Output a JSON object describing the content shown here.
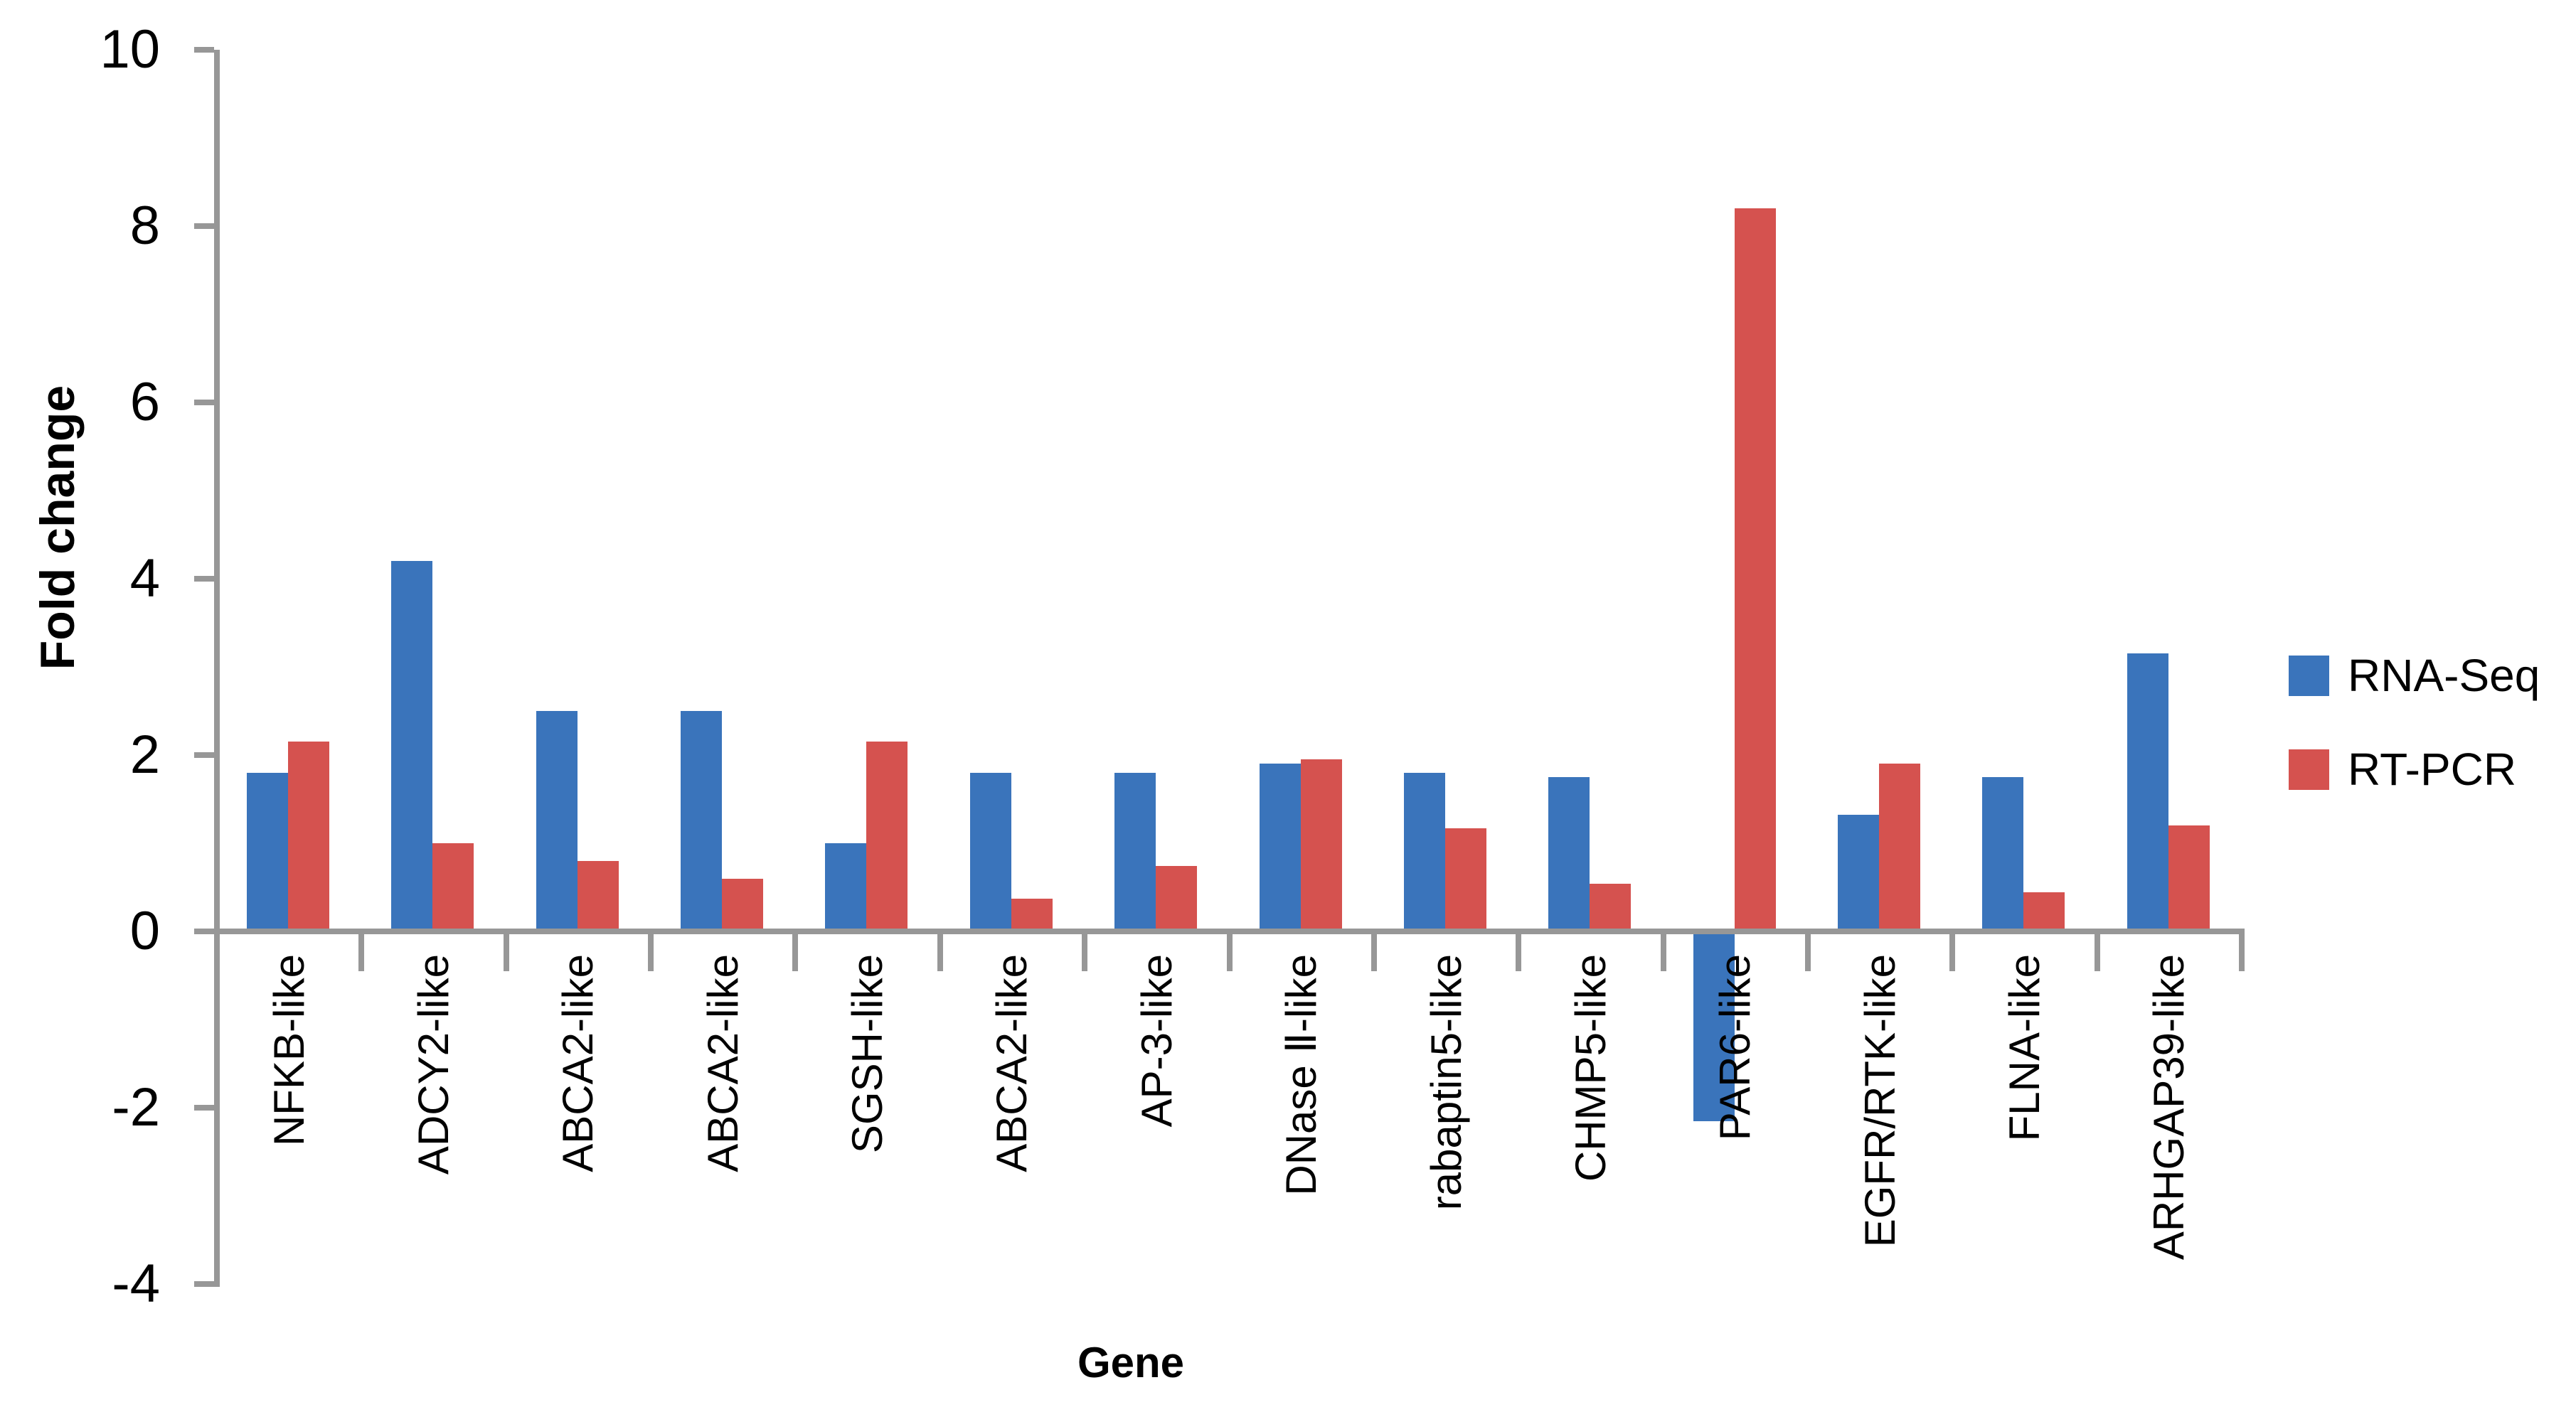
{
  "chart_data": {
    "type": "bar",
    "title": "",
    "xlabel": "Gene",
    "ylabel": "Fold change",
    "ylim": [
      -4,
      10
    ],
    "ytick_step": 2,
    "yticks": [
      "10",
      "8",
      "6",
      "4",
      "2",
      "0",
      "-2",
      "-4"
    ],
    "categories": [
      "NFKB-like",
      "ADCY2-like",
      "ABCA2-like",
      "ABCA2-like",
      "SGSH-like",
      "ABCA2-like",
      "AP-3-like",
      "DNase Ⅱ-like",
      "rabaptin5-like",
      "CHMP5-like",
      "PAR6-like",
      "EGFR/RTK-like",
      "FLNA-like",
      "ARHGAP39-like"
    ],
    "series": [
      {
        "name": "RNA-Seq",
        "color": "#3A74BB",
        "values": [
          1.8,
          4.2,
          2.5,
          2.5,
          1.0,
          1.8,
          1.8,
          1.9,
          1.8,
          1.75,
          -2.15,
          1.32,
          1.75,
          3.15
        ]
      },
      {
        "name": "RT-PCR",
        "color": "#D5524F",
        "values": [
          2.15,
          1.0,
          0.8,
          0.6,
          2.15,
          0.37,
          0.74,
          1.95,
          1.17,
          0.54,
          8.2,
          1.9,
          0.44,
          1.2
        ]
      }
    ],
    "legend_position": "right",
    "grid": false,
    "axis_color": "#979797",
    "text_color": "#000000"
  }
}
